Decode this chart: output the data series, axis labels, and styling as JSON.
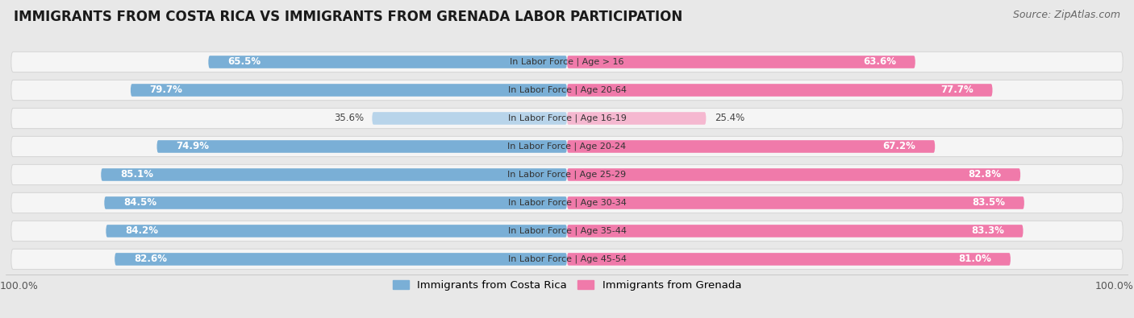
{
  "title": "IMMIGRANTS FROM COSTA RICA VS IMMIGRANTS FROM GRENADA LABOR PARTICIPATION",
  "source": "Source: ZipAtlas.com",
  "categories": [
    "In Labor Force | Age > 16",
    "In Labor Force | Age 20-64",
    "In Labor Force | Age 16-19",
    "In Labor Force | Age 20-24",
    "In Labor Force | Age 25-29",
    "In Labor Force | Age 30-34",
    "In Labor Force | Age 35-44",
    "In Labor Force | Age 45-54"
  ],
  "costa_rica": [
    65.5,
    79.7,
    35.6,
    74.9,
    85.1,
    84.5,
    84.2,
    82.6
  ],
  "grenada": [
    63.6,
    77.7,
    25.4,
    67.2,
    82.8,
    83.5,
    83.3,
    81.0
  ],
  "costa_rica_color": "#7aafd6",
  "costa_rica_color_light": "#b8d4ea",
  "grenada_color": "#f07aaa",
  "grenada_color_light": "#f5b8d0",
  "bg_color": "#e8e8e8",
  "row_bg": "#f5f5f5",
  "row_border": "#d8d8d8",
  "max_val": 100.0,
  "legend_label_cr": "Immigrants from Costa Rica",
  "legend_label_gr": "Immigrants from Grenada",
  "title_fontsize": 12,
  "source_fontsize": 9,
  "value_fontsize": 8.5,
  "category_fontsize": 8
}
